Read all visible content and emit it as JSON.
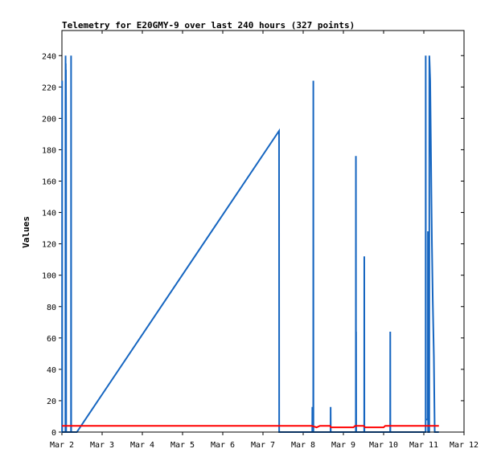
{
  "chart_data": {
    "type": "line",
    "title": "Telemetry for E20GMY-9 over last 240 hours (327 points)",
    "xlabel": "",
    "ylabel": "Values",
    "xlim": [
      "2024-03-02 00:00",
      "2024-03-12 00:00"
    ],
    "ylim": [
      0,
      256
    ],
    "x_tick_labels": [
      "Mar 2",
      "Mar 3",
      "Mar 4",
      "Mar 5",
      "Mar 6",
      "Mar 7",
      "Mar 8",
      "Mar 9",
      "Mar 10",
      "Mar 11",
      "Mar 12"
    ],
    "y_ticks": [
      0,
      20,
      40,
      60,
      80,
      100,
      120,
      140,
      160,
      180,
      200,
      220,
      240
    ],
    "grid": false,
    "colors": {
      "series_blue": "#1565c0",
      "series_red": "#ff0000",
      "series_black": "#000000"
    },
    "series": [
      {
        "color": "#1565c0",
        "points": [
          [
            "2024-03-02 00:05",
            0
          ],
          [
            "2024-03-02 00:07",
            224
          ],
          [
            "2024-03-02 00:10",
            0
          ],
          [
            "2024-03-02 02:05",
            0
          ],
          [
            "2024-03-02 02:08",
            209
          ],
          [
            "2024-03-02 02:11",
            240
          ],
          [
            "2024-03-02 02:14",
            199
          ],
          [
            "2024-03-02 02:17",
            235
          ],
          [
            "2024-03-02 02:20",
            219
          ],
          [
            "2024-03-02 02:23",
            231
          ],
          [
            "2024-03-02 02:26",
            214
          ],
          [
            "2024-03-02 02:29",
            196
          ],
          [
            "2024-03-02 02:32",
            0
          ],
          [
            "2024-03-02 05:25",
            0
          ],
          [
            "2024-03-02 05:28",
            240
          ],
          [
            "2024-03-02 05:32",
            0
          ],
          [
            "2024-03-02 08:55",
            0
          ],
          [
            "2024-03-07 09:35",
            192
          ],
          [
            "2024-03-07 09:40",
            0
          ],
          [
            "2024-03-08 05:25",
            0
          ],
          [
            "2024-03-08 05:28",
            16
          ],
          [
            "2024-03-08 05:32",
            0
          ],
          [
            "2024-03-08 06:00",
            0
          ],
          [
            "2024-03-08 06:03",
            224
          ],
          [
            "2024-03-08 06:07",
            0
          ],
          [
            "2024-03-08 16:20",
            0
          ],
          [
            "2024-03-08 16:23",
            16
          ],
          [
            "2024-03-08 16:27",
            0
          ],
          [
            "2024-03-09 07:25",
            0
          ],
          [
            "2024-03-09 07:28",
            176
          ],
          [
            "2024-03-09 07:32",
            0
          ],
          [
            "2024-03-09 07:35",
            64
          ],
          [
            "2024-03-09 07:39",
            0
          ],
          [
            "2024-03-09 12:25",
            0
          ],
          [
            "2024-03-09 12:28",
            112
          ],
          [
            "2024-03-09 12:32",
            0
          ],
          [
            "2024-03-10 03:55",
            0
          ],
          [
            "2024-03-10 03:58",
            64
          ],
          [
            "2024-03-10 04:02",
            0
          ],
          [
            "2024-03-11 01:05",
            0
          ],
          [
            "2024-03-11 01:08",
            240
          ],
          [
            "2024-03-11 01:14",
            8
          ],
          [
            "2024-03-11 02:25",
            8
          ],
          [
            "2024-03-11 02:28",
            128
          ],
          [
            "2024-03-11 02:32",
            0
          ],
          [
            "2024-03-11 03:15",
            0
          ],
          [
            "2024-03-11 03:18",
            240
          ],
          [
            "2024-03-11 03:48",
            224
          ],
          [
            "2024-03-11 04:10",
            188
          ],
          [
            "2024-03-11 04:30",
            152
          ],
          [
            "2024-03-11 04:50",
            120
          ],
          [
            "2024-03-11 05:20",
            84
          ],
          [
            "2024-03-11 06:00",
            48
          ],
          [
            "2024-03-11 06:30",
            0
          ],
          [
            "2024-03-11 09:00",
            0
          ]
        ]
      },
      {
        "color": "#ff0000",
        "points": [
          [
            "2024-03-02 00:00",
            4
          ],
          [
            "2024-03-08 05:00",
            4
          ],
          [
            "2024-03-08 08:00",
            3
          ],
          [
            "2024-03-08 10:00",
            4
          ],
          [
            "2024-03-08 16:00",
            4
          ],
          [
            "2024-03-08 16:30",
            3
          ],
          [
            "2024-03-09 06:00",
            3
          ],
          [
            "2024-03-09 07:00",
            4
          ],
          [
            "2024-03-09 12:00",
            4
          ],
          [
            "2024-03-09 13:00",
            3
          ],
          [
            "2024-03-10 00:00",
            3
          ],
          [
            "2024-03-10 01:00",
            4
          ],
          [
            "2024-03-11 09:00",
            4
          ]
        ]
      },
      {
        "color": "#000000",
        "points": [
          [
            "2024-03-02 00:00",
            0
          ],
          [
            "2024-03-11 09:00",
            0
          ]
        ]
      }
    ]
  }
}
